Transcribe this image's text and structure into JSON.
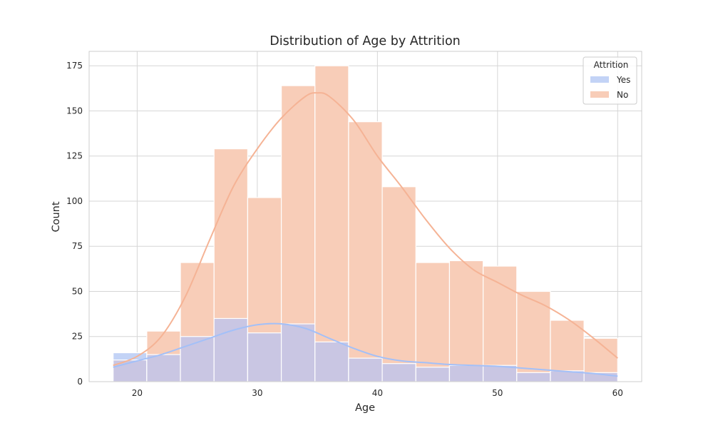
{
  "chart_data": {
    "type": "histogram",
    "title": "Distribution of Age by Attrition",
    "xlabel": "Age",
    "ylabel": "Count",
    "xlim": [
      16,
      62
    ],
    "ylim": [
      0,
      183
    ],
    "x_ticks": [
      20,
      30,
      40,
      50,
      60
    ],
    "y_ticks": [
      0,
      25,
      50,
      75,
      100,
      125,
      150,
      175
    ],
    "grid": true,
    "bins": [
      18,
      20.8,
      23.6,
      26.4,
      29.2,
      32,
      34.8,
      37.6,
      40.4,
      43.2,
      46,
      48.8,
      51.6,
      54.4,
      57.2,
      60
    ],
    "legend": {
      "title": "Attrition",
      "placement": "top-right"
    },
    "series": [
      {
        "name": "Yes",
        "color": "#c3d3f6",
        "kde_color": "#a3c0f8",
        "values": [
          16,
          15,
          25,
          35,
          27,
          32,
          22,
          13,
          10,
          8,
          9,
          9,
          5,
          6,
          5
        ],
        "kde": [
          [
            18,
            8
          ],
          [
            20,
            11.5
          ],
          [
            22,
            15
          ],
          [
            24,
            19.5
          ],
          [
            26,
            24
          ],
          [
            28,
            28.5
          ],
          [
            30,
            31.5
          ],
          [
            32,
            32
          ],
          [
            34,
            29.5
          ],
          [
            36,
            24
          ],
          [
            38,
            18.5
          ],
          [
            40,
            14
          ],
          [
            42,
            11.5
          ],
          [
            44,
            10.5
          ],
          [
            46,
            9.5
          ],
          [
            48,
            9
          ],
          [
            50,
            8.5
          ],
          [
            52,
            7.5
          ],
          [
            54,
            6.5
          ],
          [
            56,
            5.5
          ],
          [
            58,
            4.5
          ],
          [
            60,
            3
          ]
        ]
      },
      {
        "name": "No",
        "color": "#f8cdb8",
        "kde_color": "#f5b395",
        "values": [
          12,
          28,
          66,
          129,
          102,
          164,
          175,
          144,
          108,
          66,
          67,
          64,
          50,
          34,
          24
        ],
        "kde": [
          [
            18,
            9
          ],
          [
            20,
            14
          ],
          [
            22,
            25
          ],
          [
            24,
            47
          ],
          [
            26,
            78
          ],
          [
            28,
            108
          ],
          [
            30,
            129
          ],
          [
            32,
            146
          ],
          [
            34,
            158
          ],
          [
            35,
            160
          ],
          [
            36,
            158
          ],
          [
            38,
            145
          ],
          [
            40,
            125
          ],
          [
            42,
            108
          ],
          [
            44,
            90
          ],
          [
            46,
            74
          ],
          [
            48,
            62
          ],
          [
            50,
            55
          ],
          [
            52,
            48
          ],
          [
            54,
            42
          ],
          [
            56,
            34
          ],
          [
            58,
            24
          ],
          [
            60,
            13
          ]
        ]
      }
    ],
    "overlap_color": "#c9c6e3"
  }
}
